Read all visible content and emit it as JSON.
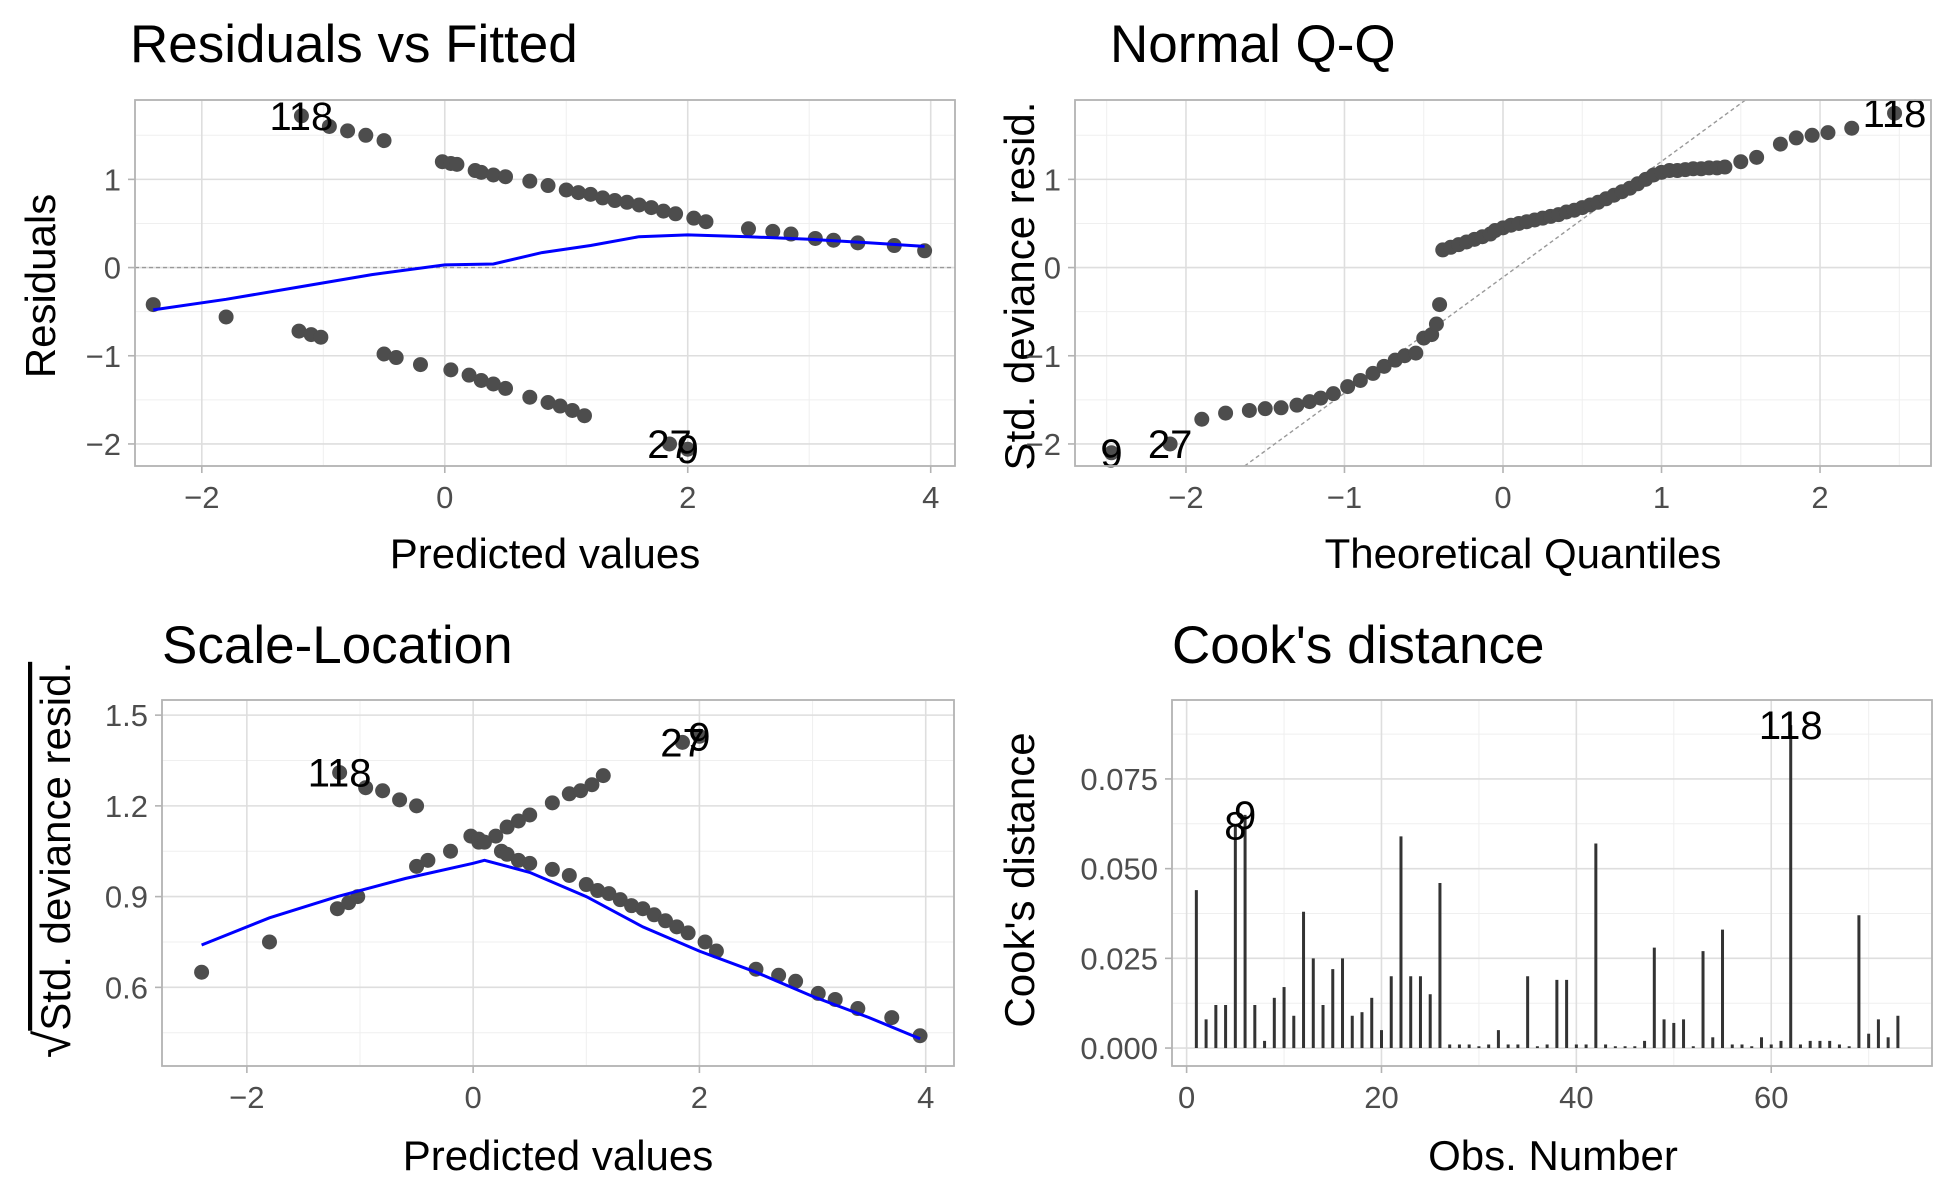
{
  "colors": {
    "point": "#4d4d4d",
    "smooth": "#0000ff",
    "grid_major": "#dedede",
    "grid_minor": "#efefef",
    "panel_border": "#b3b3b3",
    "reference_line": "#999999",
    "bar": "#333333"
  },
  "chart_data": [
    {
      "type": "scatter",
      "title": "Residuals vs Fitted",
      "xlabel": "Predicted values",
      "ylabel": "Residuals",
      "xlim": [
        -2.55,
        4.2
      ],
      "ylim": [
        -2.25,
        1.9
      ],
      "xticks": [
        -2,
        0,
        2,
        4
      ],
      "yticks": [
        -2,
        -1,
        0,
        1
      ],
      "hline": 0,
      "grid": true,
      "points": [
        [
          -2.4,
          -0.42
        ],
        [
          -1.8,
          -0.56
        ],
        [
          -1.2,
          -0.72
        ],
        [
          -1.1,
          -0.76
        ],
        [
          -1.02,
          -0.79
        ],
        [
          -0.5,
          -0.98
        ],
        [
          -0.4,
          -1.02
        ],
        [
          -0.2,
          -1.1
        ],
        [
          0.05,
          -1.16
        ],
        [
          0.2,
          -1.22
        ],
        [
          0.3,
          -1.28
        ],
        [
          0.4,
          -1.32
        ],
        [
          0.5,
          -1.37
        ],
        [
          0.7,
          -1.47
        ],
        [
          0.85,
          -1.53
        ],
        [
          0.95,
          -1.57
        ],
        [
          1.05,
          -1.62
        ],
        [
          1.15,
          -1.68
        ],
        [
          1.85,
          -2.0
        ],
        [
          2.0,
          -2.06
        ],
        [
          -1.18,
          1.72
        ],
        [
          -0.95,
          1.6
        ],
        [
          -0.8,
          1.55
        ],
        [
          -0.65,
          1.5
        ],
        [
          -0.5,
          1.44
        ],
        [
          -0.02,
          1.2
        ],
        [
          0.05,
          1.18
        ],
        [
          0.1,
          1.17
        ],
        [
          0.25,
          1.1
        ],
        [
          0.3,
          1.08
        ],
        [
          0.4,
          1.05
        ],
        [
          0.5,
          1.03
        ],
        [
          0.7,
          0.98
        ],
        [
          0.85,
          0.93
        ],
        [
          1.0,
          0.88
        ],
        [
          1.1,
          0.85
        ],
        [
          1.2,
          0.83
        ],
        [
          1.3,
          0.79
        ],
        [
          1.4,
          0.76
        ],
        [
          1.5,
          0.74
        ],
        [
          1.6,
          0.71
        ],
        [
          1.7,
          0.68
        ],
        [
          1.8,
          0.64
        ],
        [
          1.9,
          0.61
        ],
        [
          2.05,
          0.56
        ],
        [
          2.15,
          0.52
        ],
        [
          2.5,
          0.44
        ],
        [
          2.7,
          0.41
        ],
        [
          2.85,
          0.38
        ],
        [
          3.05,
          0.33
        ],
        [
          3.2,
          0.31
        ],
        [
          3.4,
          0.28
        ],
        [
          3.7,
          0.25
        ],
        [
          3.95,
          0.19
        ]
      ],
      "smooth": [
        [
          -2.4,
          -0.48
        ],
        [
          -1.8,
          -0.36
        ],
        [
          -1.2,
          -0.22
        ],
        [
          -0.6,
          -0.08
        ],
        [
          0.0,
          0.03
        ],
        [
          0.4,
          0.04
        ],
        [
          0.8,
          0.17
        ],
        [
          1.2,
          0.25
        ],
        [
          1.6,
          0.35
        ],
        [
          2.0,
          0.37
        ],
        [
          2.5,
          0.35
        ],
        [
          3.0,
          0.32
        ],
        [
          3.5,
          0.28
        ],
        [
          3.95,
          0.24
        ]
      ],
      "labels": [
        {
          "text": "118",
          "x": -1.18,
          "y": 1.72
        },
        {
          "text": "27",
          "x": 1.85,
          "y": -2.0
        },
        {
          "text": "9",
          "x": 2.0,
          "y": -2.06
        }
      ]
    },
    {
      "type": "scatter",
      "title": "Normal Q-Q",
      "xlabel": "Theoretical Quantiles",
      "ylabel": "Std. deviance resid.",
      "xlim": [
        -2.7,
        2.7
      ],
      "ylim": [
        -2.25,
        1.9
      ],
      "xticks": [
        -2,
        -1,
        0,
        1,
        2
      ],
      "yticks": [
        -2,
        -1,
        0,
        1
      ],
      "reference_line": [
        [
          -1.63,
          -2.25
        ],
        [
          1.53,
          1.9
        ]
      ],
      "grid": true,
      "points": [
        [
          -2.47,
          -2.1
        ],
        [
          -2.1,
          -2.0
        ],
        [
          -1.9,
          -1.72
        ],
        [
          -1.75,
          -1.65
        ],
        [
          -1.6,
          -1.62
        ],
        [
          -1.5,
          -1.6
        ],
        [
          -1.4,
          -1.59
        ],
        [
          -1.3,
          -1.56
        ],
        [
          -1.22,
          -1.52
        ],
        [
          -1.15,
          -1.48
        ],
        [
          -1.07,
          -1.43
        ],
        [
          -0.98,
          -1.35
        ],
        [
          -0.9,
          -1.28
        ],
        [
          -0.82,
          -1.2
        ],
        [
          -0.75,
          -1.12
        ],
        [
          -0.68,
          -1.05
        ],
        [
          -0.62,
          -1.0
        ],
        [
          -0.55,
          -0.97
        ],
        [
          -0.5,
          -0.8
        ],
        [
          -0.45,
          -0.76
        ],
        [
          -0.42,
          -0.64
        ],
        [
          -0.4,
          -0.42
        ],
        [
          -0.38,
          0.2
        ],
        [
          -0.33,
          0.23
        ],
        [
          -0.28,
          0.26
        ],
        [
          -0.23,
          0.29
        ],
        [
          -0.18,
          0.32
        ],
        [
          -0.13,
          0.35
        ],
        [
          -0.08,
          0.38
        ],
        [
          -0.05,
          0.42
        ],
        [
          0.0,
          0.45
        ],
        [
          0.05,
          0.48
        ],
        [
          0.1,
          0.5
        ],
        [
          0.15,
          0.52
        ],
        [
          0.2,
          0.54
        ],
        [
          0.25,
          0.56
        ],
        [
          0.3,
          0.58
        ],
        [
          0.35,
          0.6
        ],
        [
          0.4,
          0.63
        ],
        [
          0.45,
          0.65
        ],
        [
          0.5,
          0.68
        ],
        [
          0.55,
          0.71
        ],
        [
          0.6,
          0.74
        ],
        [
          0.65,
          0.78
        ],
        [
          0.7,
          0.82
        ],
        [
          0.75,
          0.86
        ],
        [
          0.8,
          0.9
        ],
        [
          0.85,
          0.95
        ],
        [
          0.9,
          1.0
        ],
        [
          0.95,
          1.05
        ],
        [
          1.0,
          1.08
        ],
        [
          1.05,
          1.1
        ],
        [
          1.1,
          1.1
        ],
        [
          1.15,
          1.11
        ],
        [
          1.2,
          1.12
        ],
        [
          1.25,
          1.12
        ],
        [
          1.3,
          1.13
        ],
        [
          1.35,
          1.13
        ],
        [
          1.4,
          1.14
        ],
        [
          1.5,
          1.2
        ],
        [
          1.6,
          1.25
        ],
        [
          1.75,
          1.4
        ],
        [
          1.85,
          1.47
        ],
        [
          1.95,
          1.5
        ],
        [
          2.05,
          1.53
        ],
        [
          2.2,
          1.58
        ],
        [
          2.47,
          1.75
        ]
      ],
      "labels": [
        {
          "text": "118",
          "x": 2.47,
          "y": 1.75
        },
        {
          "text": "9",
          "x": -2.47,
          "y": -2.1
        },
        {
          "text": "27",
          "x": -2.1,
          "y": -2.0
        }
      ]
    },
    {
      "type": "scatter",
      "title": "Scale-Location",
      "xlabel": "Predicted values",
      "ylabel": "Std. deviance resid.",
      "ylabel_prefix": "√",
      "xlim": [
        -2.75,
        4.25
      ],
      "ylim": [
        0.34,
        1.55
      ],
      "xticks": [
        -2,
        0,
        2,
        4
      ],
      "yticks": [
        0.6,
        0.9,
        1.2,
        1.5
      ],
      "ytick_labels": [
        "0.6",
        "0.9",
        "1.2",
        "1.5"
      ],
      "grid": true,
      "points": [
        [
          -2.4,
          0.65
        ],
        [
          -1.8,
          0.75
        ],
        [
          -1.2,
          0.86
        ],
        [
          -1.1,
          0.88
        ],
        [
          -1.02,
          0.9
        ],
        [
          -0.5,
          1.0
        ],
        [
          -0.4,
          1.02
        ],
        [
          -0.2,
          1.05
        ],
        [
          0.05,
          1.08
        ],
        [
          0.2,
          1.1
        ],
        [
          0.3,
          1.13
        ],
        [
          0.4,
          1.15
        ],
        [
          0.5,
          1.17
        ],
        [
          0.7,
          1.21
        ],
        [
          0.85,
          1.24
        ],
        [
          0.95,
          1.25
        ],
        [
          1.05,
          1.27
        ],
        [
          1.15,
          1.3
        ],
        [
          1.85,
          1.41
        ],
        [
          2.0,
          1.43
        ],
        [
          -1.18,
          1.31
        ],
        [
          -0.95,
          1.26
        ],
        [
          -0.8,
          1.25
        ],
        [
          -0.65,
          1.22
        ],
        [
          -0.5,
          1.2
        ],
        [
          -0.02,
          1.1
        ],
        [
          0.05,
          1.09
        ],
        [
          0.1,
          1.08
        ],
        [
          0.25,
          1.05
        ],
        [
          0.3,
          1.04
        ],
        [
          0.4,
          1.02
        ],
        [
          0.5,
          1.01
        ],
        [
          0.7,
          0.99
        ],
        [
          0.85,
          0.97
        ],
        [
          1.0,
          0.94
        ],
        [
          1.1,
          0.92
        ],
        [
          1.2,
          0.91
        ],
        [
          1.3,
          0.89
        ],
        [
          1.4,
          0.87
        ],
        [
          1.5,
          0.86
        ],
        [
          1.6,
          0.84
        ],
        [
          1.7,
          0.82
        ],
        [
          1.8,
          0.8
        ],
        [
          1.9,
          0.78
        ],
        [
          2.05,
          0.75
        ],
        [
          2.15,
          0.72
        ],
        [
          2.5,
          0.66
        ],
        [
          2.7,
          0.64
        ],
        [
          2.85,
          0.62
        ],
        [
          3.05,
          0.58
        ],
        [
          3.2,
          0.56
        ],
        [
          3.4,
          0.53
        ],
        [
          3.7,
          0.5
        ],
        [
          3.95,
          0.44
        ]
      ],
      "smooth": [
        [
          -2.4,
          0.74
        ],
        [
          -1.8,
          0.83
        ],
        [
          -1.2,
          0.9
        ],
        [
          -0.6,
          0.96
        ],
        [
          0.0,
          1.01
        ],
        [
          0.1,
          1.02
        ],
        [
          0.5,
          0.98
        ],
        [
          1.0,
          0.9
        ],
        [
          1.5,
          0.8
        ],
        [
          2.0,
          0.72
        ],
        [
          2.5,
          0.65
        ],
        [
          3.0,
          0.57
        ],
        [
          3.5,
          0.5
        ],
        [
          3.95,
          0.43
        ]
      ],
      "labels": [
        {
          "text": "118",
          "x": -1.18,
          "y": 1.31
        },
        {
          "text": "27",
          "x": 1.85,
          "y": 1.41
        },
        {
          "text": "9",
          "x": 2.0,
          "y": 1.43
        }
      ]
    },
    {
      "type": "bar",
      "title": "Cook's distance",
      "xlabel": "Obs. Number",
      "ylabel": "Cook's distance",
      "xlim": [
        -1.5,
        76.5
      ],
      "ylim": [
        -0.005,
        0.097
      ],
      "xticks": [
        0,
        20,
        40,
        60
      ],
      "yticks": [
        0.0,
        0.025,
        0.05,
        0.075
      ],
      "ytick_labels": [
        "0.000",
        "0.025",
        "0.050",
        "0.075"
      ],
      "grid": true,
      "x": [
        1,
        2,
        3,
        4,
        5,
        6,
        7,
        8,
        9,
        10,
        11,
        12,
        13,
        14,
        15,
        16,
        17,
        18,
        19,
        20,
        21,
        22,
        23,
        24,
        25,
        26,
        27,
        28,
        29,
        30,
        31,
        32,
        33,
        34,
        35,
        36,
        37,
        38,
        39,
        40,
        41,
        42,
        43,
        44,
        45,
        46,
        47,
        48,
        49,
        50,
        51,
        52,
        53,
        54,
        55,
        56,
        57,
        58,
        59,
        60,
        61,
        62,
        63,
        64,
        65,
        66,
        67,
        68,
        69,
        70,
        71,
        72,
        73
      ],
      "values": [
        0.044,
        0.008,
        0.012,
        0.012,
        0.062,
        0.065,
        0.012,
        0.002,
        0.014,
        0.017,
        0.009,
        0.038,
        0.025,
        0.012,
        0.022,
        0.025,
        0.009,
        0.01,
        0.014,
        0.005,
        0.02,
        0.059,
        0.02,
        0.02,
        0.015,
        0.046,
        0.001,
        0.001,
        0.001,
        0.0005,
        0.001,
        0.005,
        0.001,
        0.001,
        0.02,
        0.0005,
        0.001,
        0.019,
        0.019,
        0.001,
        0.001,
        0.057,
        0.001,
        0.0005,
        0.0005,
        0.0005,
        0.002,
        0.028,
        0.008,
        0.007,
        0.008,
        0.0005,
        0.027,
        0.003,
        0.033,
        0.001,
        0.001,
        0.0005,
        0.003,
        0.001,
        0.002,
        0.09,
        0.001,
        0.002,
        0.002,
        0.002,
        0.001,
        0.0005,
        0.037,
        0.004,
        0.008,
        0.003,
        0.009
      ],
      "labels": [
        {
          "text": "118",
          "x": 62,
          "y": 0.09
        },
        {
          "text": "8",
          "x": 5,
          "y": 0.062
        },
        {
          "text": "9",
          "x": 6,
          "y": 0.065
        }
      ]
    }
  ]
}
